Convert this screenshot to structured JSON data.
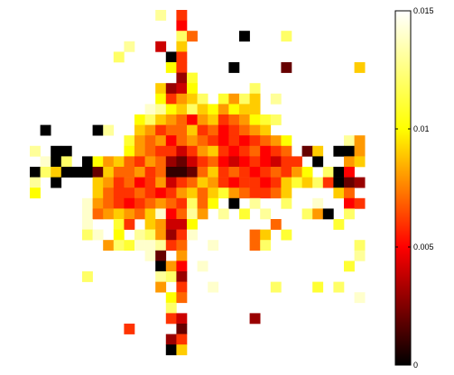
{
  "chart_data": {
    "type": "heatmap",
    "title": "",
    "xlabel": "",
    "ylabel": "",
    "grid": false,
    "colormap": "hot",
    "colormap_stops": [
      "#000000",
      "#ff0000",
      "#ffff00",
      "#ffffff"
    ],
    "clim": [
      0,
      0.015
    ],
    "colorbar": {
      "position": "right",
      "ticks": [
        0,
        0.005,
        0.01,
        0.015
      ],
      "tick_labels": [
        "0",
        "0.005",
        "0.01",
        "0.015"
      ]
    },
    "n_rows": 34,
    "n_cols": 33,
    "cells": [
      [
        0,
        12,
        0.013
      ],
      [
        0,
        14,
        0.006
      ],
      [
        1,
        14,
        0.005
      ],
      [
        2,
        14,
        0.012
      ],
      [
        2,
        15,
        0.007
      ],
      [
        2,
        20,
        0.0
      ],
      [
        2,
        24,
        0.012
      ],
      [
        3,
        9,
        0.013
      ],
      [
        3,
        12,
        0.004
      ],
      [
        3,
        14,
        0.009
      ],
      [
        4,
        8,
        0.012
      ],
      [
        4,
        13,
        0.0
      ],
      [
        4,
        14,
        0.006
      ],
      [
        5,
        13,
        0.01
      ],
      [
        5,
        14,
        0.006
      ],
      [
        5,
        19,
        0.0
      ],
      [
        5,
        24,
        0.002
      ],
      [
        5,
        31,
        0.009
      ],
      [
        6,
        14,
        0.003
      ],
      [
        6,
        15,
        0.011
      ],
      [
        7,
        12,
        0.009
      ],
      [
        7,
        13,
        0.003
      ],
      [
        7,
        14,
        0.004
      ],
      [
        7,
        15,
        0.01
      ],
      [
        7,
        21,
        0.012
      ],
      [
        8,
        12,
        0.01
      ],
      [
        8,
        13,
        0.006
      ],
      [
        8,
        14,
        0.008
      ],
      [
        8,
        15,
        0.009
      ],
      [
        8,
        16,
        0.012
      ],
      [
        8,
        18,
        0.011
      ],
      [
        8,
        19,
        0.008
      ],
      [
        8,
        20,
        0.012
      ],
      [
        8,
        21,
        0.009
      ],
      [
        8,
        23,
        0.013
      ],
      [
        9,
        11,
        0.014
      ],
      [
        9,
        12,
        0.013
      ],
      [
        9,
        13,
        0.01
      ],
      [
        9,
        14,
        0.009
      ],
      [
        9,
        15,
        0.012
      ],
      [
        9,
        16,
        0.009
      ],
      [
        9,
        17,
        0.01
      ],
      [
        9,
        18,
        0.008
      ],
      [
        9,
        19,
        0.01
      ],
      [
        9,
        20,
        0.009
      ],
      [
        9,
        21,
        0.009
      ],
      [
        10,
        10,
        0.01
      ],
      [
        10,
        11,
        0.012
      ],
      [
        10,
        12,
        0.009
      ],
      [
        10,
        13,
        0.008
      ],
      [
        10,
        14,
        0.007
      ],
      [
        10,
        15,
        0.005
      ],
      [
        10,
        16,
        0.008
      ],
      [
        10,
        17,
        0.009
      ],
      [
        10,
        18,
        0.006
      ],
      [
        10,
        19,
        0.007
      ],
      [
        10,
        20,
        0.008
      ],
      [
        10,
        21,
        0.01
      ],
      [
        10,
        22,
        0.011
      ],
      [
        10,
        23,
        0.012
      ],
      [
        11,
        1,
        0.0
      ],
      [
        11,
        6,
        0.0
      ],
      [
        11,
        7,
        0.013
      ],
      [
        11,
        10,
        0.009
      ],
      [
        11,
        11,
        0.008
      ],
      [
        11,
        12,
        0.006
      ],
      [
        11,
        13,
        0.007
      ],
      [
        11,
        14,
        0.007
      ],
      [
        11,
        15,
        0.009
      ],
      [
        11,
        16,
        0.006
      ],
      [
        11,
        17,
        0.007
      ],
      [
        11,
        18,
        0.005
      ],
      [
        11,
        19,
        0.006
      ],
      [
        11,
        20,
        0.007
      ],
      [
        11,
        21,
        0.008
      ],
      [
        11,
        22,
        0.009
      ],
      [
        12,
        9,
        0.011
      ],
      [
        12,
        10,
        0.008
      ],
      [
        12,
        11,
        0.007
      ],
      [
        12,
        12,
        0.008
      ],
      [
        12,
        13,
        0.005
      ],
      [
        12,
        14,
        0.007
      ],
      [
        12,
        15,
        0.008
      ],
      [
        12,
        16,
        0.007
      ],
      [
        12,
        17,
        0.006
      ],
      [
        12,
        18,
        0.005
      ],
      [
        12,
        19,
        0.006
      ],
      [
        12,
        20,
        0.005
      ],
      [
        12,
        21,
        0.006
      ],
      [
        12,
        22,
        0.007
      ],
      [
        12,
        23,
        0.008
      ],
      [
        12,
        24,
        0.01
      ],
      [
        12,
        30,
        0.013
      ],
      [
        12,
        31,
        0.008
      ],
      [
        13,
        0,
        0.013
      ],
      [
        13,
        2,
        0.0
      ],
      [
        13,
        3,
        0.0
      ],
      [
        13,
        9,
        0.01
      ],
      [
        13,
        10,
        0.008
      ],
      [
        13,
        11,
        0.007
      ],
      [
        13,
        12,
        0.006
      ],
      [
        13,
        13,
        0.006
      ],
      [
        13,
        14,
        0.004
      ],
      [
        13,
        15,
        0.006
      ],
      [
        13,
        16,
        0.008
      ],
      [
        13,
        17,
        0.009
      ],
      [
        13,
        18,
        0.006
      ],
      [
        13,
        19,
        0.005
      ],
      [
        13,
        20,
        0.006
      ],
      [
        13,
        21,
        0.007
      ],
      [
        13,
        22,
        0.005
      ],
      [
        13,
        23,
        0.006
      ],
      [
        13,
        24,
        0.007
      ],
      [
        13,
        26,
        0.002
      ],
      [
        13,
        27,
        0.009
      ],
      [
        13,
        29,
        0.0
      ],
      [
        13,
        30,
        0.0
      ],
      [
        13,
        31,
        0.008
      ],
      [
        14,
        1,
        0.014
      ],
      [
        14,
        2,
        0.0
      ],
      [
        14,
        3,
        0.012
      ],
      [
        14,
        5,
        0.0
      ],
      [
        14,
        6,
        0.01
      ],
      [
        14,
        7,
        0.008
      ],
      [
        14,
        8,
        0.009
      ],
      [
        14,
        9,
        0.007
      ],
      [
        14,
        10,
        0.006
      ],
      [
        14,
        11,
        0.008
      ],
      [
        14,
        12,
        0.007
      ],
      [
        14,
        13,
        0.003
      ],
      [
        14,
        14,
        0.002
      ],
      [
        14,
        15,
        0.004
      ],
      [
        14,
        16,
        0.006
      ],
      [
        14,
        17,
        0.007
      ],
      [
        14,
        18,
        0.005
      ],
      [
        14,
        19,
        0.004
      ],
      [
        14,
        20,
        0.005
      ],
      [
        14,
        21,
        0.006
      ],
      [
        14,
        22,
        0.005
      ],
      [
        14,
        23,
        0.004
      ],
      [
        14,
        24,
        0.006
      ],
      [
        14,
        25,
        0.006
      ],
      [
        14,
        27,
        0.0
      ],
      [
        14,
        30,
        0.008
      ],
      [
        14,
        31,
        0.009
      ],
      [
        15,
        0,
        0.0
      ],
      [
        15,
        1,
        0.012
      ],
      [
        15,
        2,
        0.009
      ],
      [
        15,
        3,
        0.0
      ],
      [
        15,
        4,
        0.0
      ],
      [
        15,
        5,
        0.0
      ],
      [
        15,
        6,
        0.002
      ],
      [
        15,
        7,
        0.009
      ],
      [
        15,
        8,
        0.007
      ],
      [
        15,
        9,
        0.007
      ],
      [
        15,
        10,
        0.008
      ],
      [
        15,
        11,
        0.006
      ],
      [
        15,
        12,
        0.007
      ],
      [
        15,
        13,
        0.001
      ],
      [
        15,
        14,
        0.001
      ],
      [
        15,
        15,
        0.002
      ],
      [
        15,
        16,
        0.007
      ],
      [
        15,
        17,
        0.009
      ],
      [
        15,
        18,
        0.006
      ],
      [
        15,
        19,
        0.007
      ],
      [
        15,
        20,
        0.006
      ],
      [
        15,
        21,
        0.005
      ],
      [
        15,
        22,
        0.006
      ],
      [
        15,
        23,
        0.007
      ],
      [
        15,
        24,
        0.006
      ],
      [
        15,
        25,
        0.008
      ],
      [
        15,
        26,
        0.01
      ],
      [
        15,
        28,
        0.012
      ],
      [
        15,
        29,
        0.0
      ],
      [
        15,
        30,
        0.005
      ],
      [
        16,
        0,
        0.013
      ],
      [
        16,
        2,
        0.0
      ],
      [
        16,
        6,
        0.009
      ],
      [
        16,
        7,
        0.008
      ],
      [
        16,
        8,
        0.006
      ],
      [
        16,
        9,
        0.007
      ],
      [
        16,
        10,
        0.005
      ],
      [
        16,
        11,
        0.006
      ],
      [
        16,
        12,
        0.008
      ],
      [
        16,
        13,
        0.004
      ],
      [
        16,
        14,
        0.006
      ],
      [
        16,
        15,
        0.007
      ],
      [
        16,
        16,
        0.009
      ],
      [
        16,
        17,
        0.008
      ],
      [
        16,
        18,
        0.006
      ],
      [
        16,
        19,
        0.005
      ],
      [
        16,
        20,
        0.006
      ],
      [
        16,
        21,
        0.006
      ],
      [
        16,
        22,
        0.005
      ],
      [
        16,
        23,
        0.006
      ],
      [
        16,
        24,
        0.009
      ],
      [
        16,
        25,
        0.011
      ],
      [
        16,
        26,
        0.009
      ],
      [
        16,
        27,
        0.012
      ],
      [
        16,
        28,
        0.006
      ],
      [
        16,
        29,
        0.0
      ],
      [
        16,
        30,
        0.002
      ],
      [
        16,
        31,
        0.003
      ],
      [
        17,
        0,
        0.01
      ],
      [
        17,
        6,
        0.009
      ],
      [
        17,
        7,
        0.007
      ],
      [
        17,
        8,
        0.006
      ],
      [
        17,
        9,
        0.006
      ],
      [
        17,
        10,
        0.007
      ],
      [
        17,
        11,
        0.006
      ],
      [
        17,
        12,
        0.005
      ],
      [
        17,
        13,
        0.006
      ],
      [
        17,
        14,
        0.008
      ],
      [
        17,
        15,
        0.009
      ],
      [
        17,
        16,
        0.007
      ],
      [
        17,
        17,
        0.009
      ],
      [
        17,
        18,
        0.011
      ],
      [
        17,
        19,
        0.008
      ],
      [
        17,
        20,
        0.007
      ],
      [
        17,
        21,
        0.006
      ],
      [
        17,
        22,
        0.006
      ],
      [
        17,
        23,
        0.007
      ],
      [
        17,
        24,
        0.009
      ],
      [
        17,
        29,
        0.009
      ],
      [
        17,
        30,
        0.007
      ],
      [
        18,
        5,
        0.014
      ],
      [
        18,
        6,
        0.008
      ],
      [
        18,
        7,
        0.007
      ],
      [
        18,
        8,
        0.006
      ],
      [
        18,
        9,
        0.005
      ],
      [
        18,
        10,
        0.006
      ],
      [
        18,
        11,
        0.007
      ],
      [
        18,
        12,
        0.008
      ],
      [
        18,
        13,
        0.007
      ],
      [
        18,
        14,
        0.006
      ],
      [
        18,
        15,
        0.012
      ],
      [
        18,
        16,
        0.007
      ],
      [
        18,
        17,
        0.01
      ],
      [
        18,
        19,
        0.0
      ],
      [
        18,
        21,
        0.013
      ],
      [
        18,
        24,
        0.012
      ],
      [
        18,
        27,
        0.014
      ],
      [
        18,
        30,
        0.005
      ],
      [
        18,
        31,
        0.006
      ],
      [
        19,
        5,
        0.014
      ],
      [
        19,
        6,
        0.007
      ],
      [
        19,
        7,
        0.008
      ],
      [
        19,
        8,
        0.009
      ],
      [
        19,
        9,
        0.008
      ],
      [
        19,
        10,
        0.007
      ],
      [
        19,
        11,
        0.009
      ],
      [
        19,
        12,
        0.014
      ],
      [
        19,
        13,
        0.005
      ],
      [
        19,
        14,
        0.007
      ],
      [
        19,
        15,
        0.013
      ],
      [
        19,
        16,
        0.008
      ],
      [
        19,
        18,
        0.013
      ],
      [
        19,
        20,
        0.011
      ],
      [
        19,
        22,
        0.013
      ],
      [
        19,
        26,
        0.012
      ],
      [
        19,
        27,
        0.008
      ],
      [
        19,
        28,
        0.0
      ],
      [
        19,
        30,
        0.012
      ],
      [
        20,
        5,
        0.014
      ],
      [
        20,
        8,
        0.011
      ],
      [
        20,
        9,
        0.006
      ],
      [
        20,
        11,
        0.009
      ],
      [
        20,
        12,
        0.008
      ],
      [
        20,
        13,
        0.004
      ],
      [
        20,
        14,
        0.004
      ],
      [
        20,
        15,
        0.01
      ],
      [
        20,
        23,
        0.007
      ],
      [
        20,
        29,
        0.011
      ],
      [
        21,
        5,
        0.012
      ],
      [
        21,
        6,
        0.014
      ],
      [
        21,
        8,
        0.01
      ],
      [
        21,
        10,
        0.013
      ],
      [
        21,
        11,
        0.012
      ],
      [
        21,
        12,
        0.008
      ],
      [
        21,
        13,
        0.003
      ],
      [
        21,
        14,
        0.006
      ],
      [
        21,
        15,
        0.014
      ],
      [
        21,
        21,
        0.007
      ],
      [
        21,
        22,
        0.009
      ],
      [
        21,
        24,
        0.011
      ],
      [
        22,
        7,
        0.008
      ],
      [
        22,
        8,
        0.012
      ],
      [
        22,
        9,
        0.011
      ],
      [
        22,
        10,
        0.014
      ],
      [
        22,
        11,
        0.014
      ],
      [
        22,
        12,
        0.013
      ],
      [
        22,
        13,
        0.006
      ],
      [
        22,
        14,
        0.007
      ],
      [
        22,
        17,
        0.014
      ],
      [
        22,
        21,
        0.007
      ],
      [
        22,
        22,
        0.012
      ],
      [
        22,
        31,
        0.012
      ],
      [
        23,
        11,
        0.014
      ],
      [
        23,
        12,
        0.002
      ],
      [
        23,
        14,
        0.008
      ],
      [
        23,
        31,
        0.013
      ],
      [
        24,
        12,
        0.0
      ],
      [
        24,
        13,
        0.008
      ],
      [
        24,
        14,
        0.005
      ],
      [
        24,
        16,
        0.014
      ],
      [
        24,
        30,
        0.011
      ],
      [
        25,
        5,
        0.012
      ],
      [
        25,
        12,
        0.013
      ],
      [
        25,
        13,
        0.012
      ],
      [
        25,
        14,
        0.003
      ],
      [
        26,
        12,
        0.008
      ],
      [
        26,
        14,
        0.006
      ],
      [
        26,
        17,
        0.014
      ],
      [
        26,
        23,
        0.012
      ],
      [
        26,
        27,
        0.011
      ],
      [
        26,
        29,
        0.012
      ],
      [
        27,
        13,
        0.01
      ],
      [
        27,
        14,
        0.007
      ],
      [
        27,
        31,
        0.014
      ],
      [
        28,
        13,
        0.012
      ],
      [
        29,
        13,
        0.006
      ],
      [
        29,
        14,
        0.004
      ],
      [
        29,
        21,
        0.003
      ],
      [
        30,
        9,
        0.006
      ],
      [
        30,
        14,
        0.002
      ],
      [
        31,
        13,
        0.003
      ],
      [
        31,
        14,
        0.006
      ],
      [
        32,
        13,
        0.0
      ],
      [
        32,
        14,
        0.009
      ]
    ]
  }
}
